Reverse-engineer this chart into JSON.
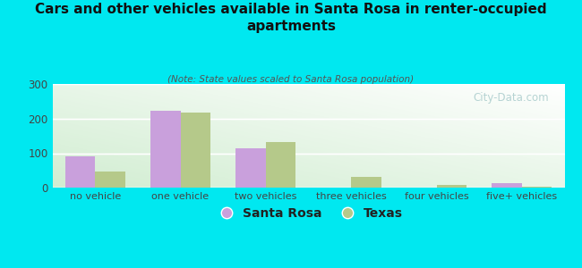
{
  "title": "Cars and other vehicles available in Santa Rosa in renter-occupied\napartments",
  "subtitle": "(Note: State values scaled to Santa Rosa population)",
  "categories": [
    "no vehicle",
    "one vehicle",
    "two vehicles",
    "three vehicles",
    "four vehicles",
    "five+ vehicles"
  ],
  "santa_rosa": [
    92,
    224,
    115,
    0,
    0,
    13
  ],
  "texas": [
    47,
    218,
    133,
    32,
    8,
    3
  ],
  "santa_rosa_color": "#c9a0dc",
  "texas_color": "#b5c98a",
  "background_color": "#00e8f0",
  "ylim": [
    0,
    300
  ],
  "yticks": [
    0,
    100,
    200,
    300
  ],
  "bar_width": 0.35,
  "legend_santa_rosa": "Santa Rosa",
  "legend_texas": "Texas",
  "watermark": "City-Data.com"
}
